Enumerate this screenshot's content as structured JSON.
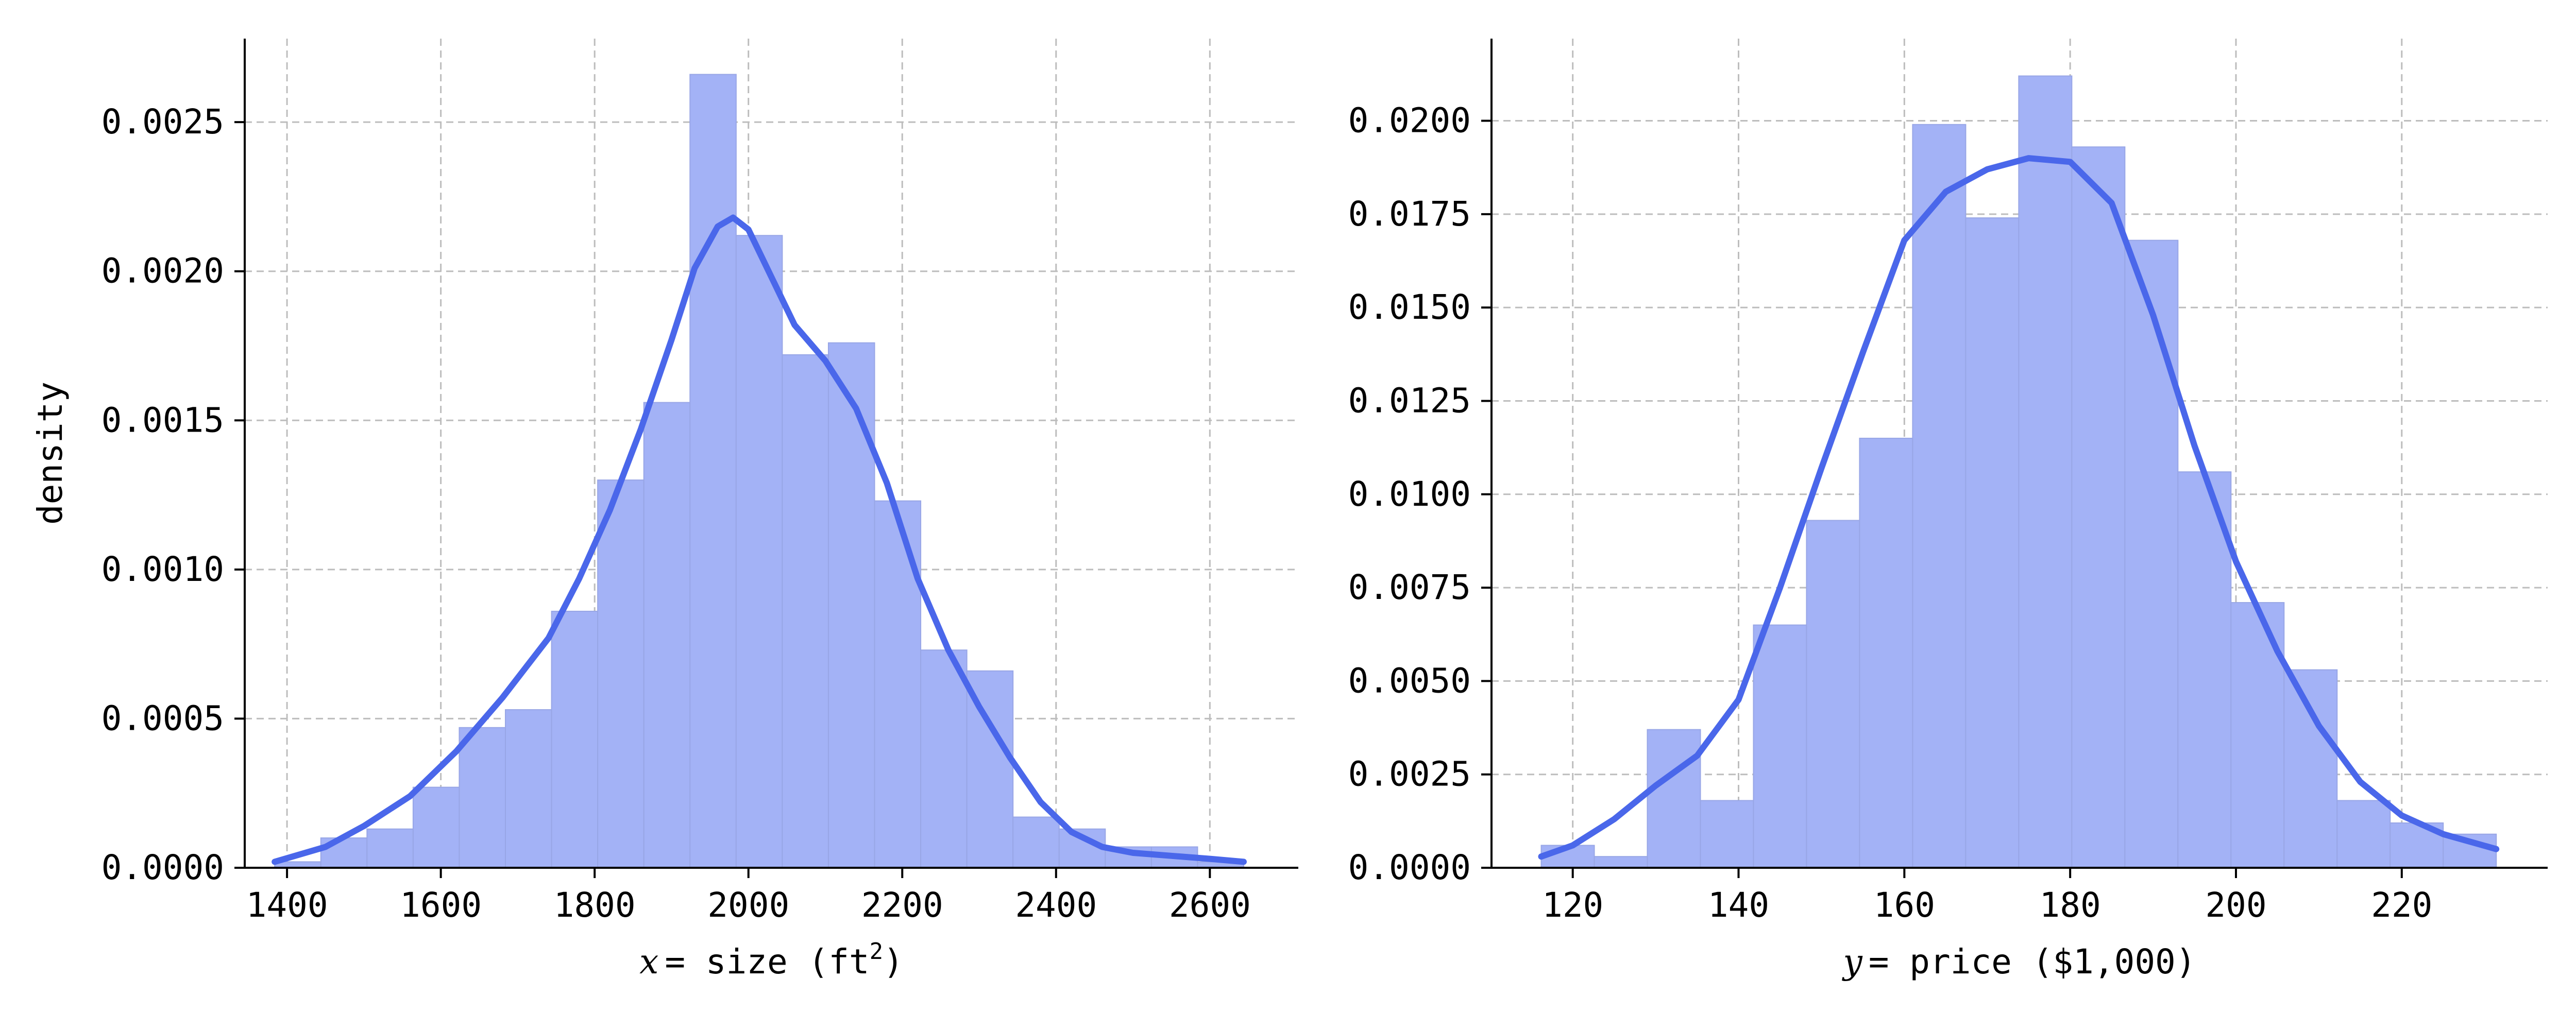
{
  "colors": {
    "bar_fill": "#a3b2f6",
    "bar_edge": "#98a6e6",
    "kde_line": "#4a67ea",
    "grid": "#bdbdbd",
    "axis": "#000000"
  },
  "chart_data": [
    {
      "type": "histogram",
      "title": "",
      "xlabel_var": "x",
      "xlabel_rest": "= size (ft",
      "xlabel_sup": "2",
      "xlabel_close": ")",
      "ylabel": "density",
      "xlim": [
        1345,
        2715
      ],
      "ylim": [
        0,
        0.00278
      ],
      "xticks": [
        1400,
        1600,
        1800,
        2000,
        2200,
        2400,
        2600
      ],
      "yticks": [
        0.0,
        0.0005,
        0.001,
        0.0015,
        0.002,
        0.0025
      ],
      "ytick_decimals": 4,
      "grid": true,
      "bin_edges": [
        1384,
        1444,
        1504,
        1564,
        1624,
        1684,
        1744,
        1804,
        1864,
        1924,
        1984,
        2044,
        2104,
        2164,
        2224,
        2284,
        2344,
        2404,
        2464,
        2524,
        2584,
        2644
      ],
      "density": [
        2e-05,
        0.0001,
        0.00013,
        0.00027,
        0.00047,
        0.00053,
        0.00086,
        0.0013,
        0.00156,
        0.00266,
        0.00212,
        0.00172,
        0.00176,
        0.00123,
        0.00073,
        0.00066,
        0.00017,
        0.00013,
        7e-05,
        7e-05,
        2e-05
      ],
      "kde": {
        "x": [
          1384,
          1450,
          1500,
          1560,
          1620,
          1680,
          1740,
          1780,
          1820,
          1860,
          1900,
          1930,
          1960,
          1980,
          2000,
          2030,
          2060,
          2100,
          2140,
          2180,
          2220,
          2260,
          2300,
          2340,
          2380,
          2420,
          2460,
          2500,
          2550,
          2600,
          2644
        ],
        "y": [
          2e-05,
          7e-05,
          0.00014,
          0.00024,
          0.00039,
          0.00057,
          0.00077,
          0.00097,
          0.0012,
          0.00147,
          0.00177,
          0.00201,
          0.00215,
          0.00218,
          0.00214,
          0.00198,
          0.00182,
          0.0017,
          0.00154,
          0.00129,
          0.00097,
          0.00073,
          0.00054,
          0.00037,
          0.00022,
          0.00012,
          7e-05,
          5e-05,
          4e-05,
          3e-05,
          2e-05
        ]
      }
    },
    {
      "type": "histogram",
      "title": "",
      "xlabel_var": "y",
      "xlabel_rest": "= price ($1,000)",
      "xlabel_sup": "",
      "xlabel_close": "",
      "ylabel": "",
      "xlim": [
        110.2,
        237.6
      ],
      "ylim": [
        0,
        0.0222
      ],
      "xticks": [
        120,
        140,
        160,
        180,
        200,
        220
      ],
      "yticks": [
        0.0,
        0.0025,
        0.005,
        0.0075,
        0.01,
        0.0125,
        0.015,
        0.0175,
        0.02
      ],
      "ytick_decimals": 4,
      "grid": true,
      "bin_edges": [
        116.2,
        122.6,
        129.0,
        135.4,
        141.8,
        148.2,
        154.6,
        161.0,
        167.4,
        173.8,
        180.2,
        186.6,
        193.0,
        199.4,
        205.8,
        212.2,
        218.6,
        225.0,
        231.4
      ],
      "density": [
        0.0006,
        0.0003,
        0.0037,
        0.0018,
        0.0065,
        0.0093,
        0.0115,
        0.0199,
        0.0174,
        0.0212,
        0.0193,
        0.0168,
        0.0106,
        0.0071,
        0.0053,
        0.0018,
        0.0012,
        0.0009
      ],
      "kde": {
        "x": [
          116.2,
          120,
          125,
          130,
          135,
          140,
          145,
          150,
          155,
          160,
          165,
          170,
          175,
          180,
          185,
          190,
          195,
          200,
          205,
          210,
          215,
          220,
          225,
          231.4
        ],
        "y": [
          0.0003,
          0.0006,
          0.0013,
          0.0022,
          0.003,
          0.0045,
          0.0075,
          0.0107,
          0.0138,
          0.0168,
          0.0181,
          0.0187,
          0.019,
          0.0189,
          0.0178,
          0.0148,
          0.0113,
          0.0082,
          0.0058,
          0.0038,
          0.0023,
          0.0014,
          0.0009,
          0.0005
        ]
      }
    }
  ]
}
